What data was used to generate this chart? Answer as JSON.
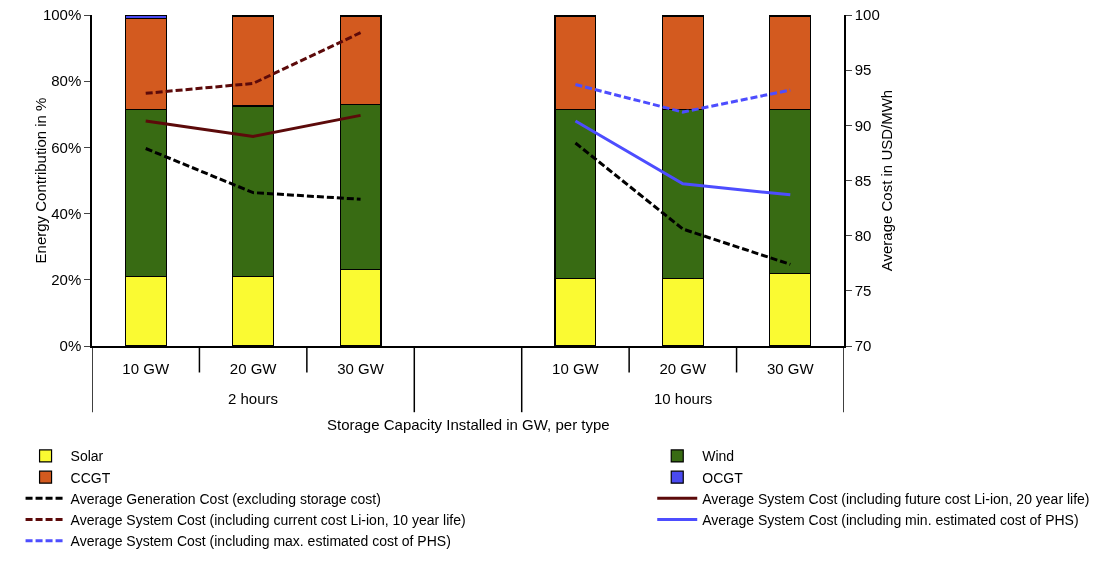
{
  "chart_data": {
    "type": "bar",
    "stacked": true,
    "xlabel": "Storage Capacity Installed in GW, per type",
    "ylabel": "Energy Contribution in %",
    "y2label": "Average Cost in USD/MWh",
    "categories": [
      "10 GW",
      "20 GW",
      "30 GW",
      null,
      "10 GW",
      "20 GW",
      "30 GW"
    ],
    "annotations": [
      "2 hours",
      "10 hours"
    ],
    "series": [
      {
        "name": "Solar",
        "color": "#fafa32",
        "values": [
          21,
          21,
          23,
          null,
          20.5,
          20.5,
          22
        ]
      },
      {
        "name": "Wind",
        "color": "#386b13",
        "values": [
          50.5,
          51.5,
          50,
          null,
          51,
          51,
          49.5
        ]
      },
      {
        "name": "CCGT",
        "color": "#d35a1f",
        "values": [
          27.5,
          27,
          26.5,
          null,
          28,
          28,
          28
        ]
      },
      {
        "name": "OCGT",
        "color": "#4a4af0",
        "values": [
          1,
          0.5,
          0.5,
          null,
          0.5,
          0.5,
          0.5
        ]
      },
      {
        "name": "Average Generation Cost (excluding storage cost)",
        "type": "line",
        "axis": "y2",
        "line_style": "dashed",
        "color": "#000000",
        "values": [
          87.9,
          83.9,
          83.3,
          null,
          88.4,
          80.6,
          77.4
        ]
      },
      {
        "name": "Average System Cost (including future cost Li-ion, 20 year life)",
        "type": "line",
        "axis": "y2",
        "line_style": "solid",
        "color": "#5c0a0a",
        "values": [
          90.4,
          89,
          90.9,
          null,
          null,
          null,
          null
        ]
      },
      {
        "name": "Average System Cost (including current cost Li-ion, 10 year life)",
        "type": "line",
        "axis": "y2",
        "line_style": "dashed",
        "color": "#5c0a0a",
        "values": [
          92.9,
          93.8,
          98.4,
          null,
          null,
          null,
          null
        ]
      },
      {
        "name": "Average System Cost (including min. estimated cost of PHS)",
        "type": "line",
        "axis": "y2",
        "line_style": "solid",
        "color": "#4d4dff",
        "values": [
          null,
          null,
          null,
          null,
          90.4,
          84.7,
          83.7
        ]
      },
      {
        "name": "Average System Cost (including max. estimated cost of PHS)",
        "type": "line",
        "axis": "y2",
        "line_style": "dashed",
        "color": "#4d4dff",
        "values": [
          null,
          null,
          null,
          null,
          93.7,
          91.2,
          93.2
        ]
      }
    ],
    "ylim": [
      0,
      100
    ],
    "yticks": [
      {
        "value": 0,
        "label": "0%"
      },
      {
        "value": 20,
        "label": "20%"
      },
      {
        "value": 40,
        "label": "40%"
      },
      {
        "value": 60,
        "label": "60%"
      },
      {
        "value": 80,
        "label": "80%"
      },
      {
        "value": 100,
        "label": "100%"
      }
    ],
    "y2lim": [
      70,
      100
    ],
    "y2ticks": [
      70,
      75,
      80,
      85,
      90,
      95,
      100
    ],
    "grid": false,
    "legend": "bottom"
  }
}
